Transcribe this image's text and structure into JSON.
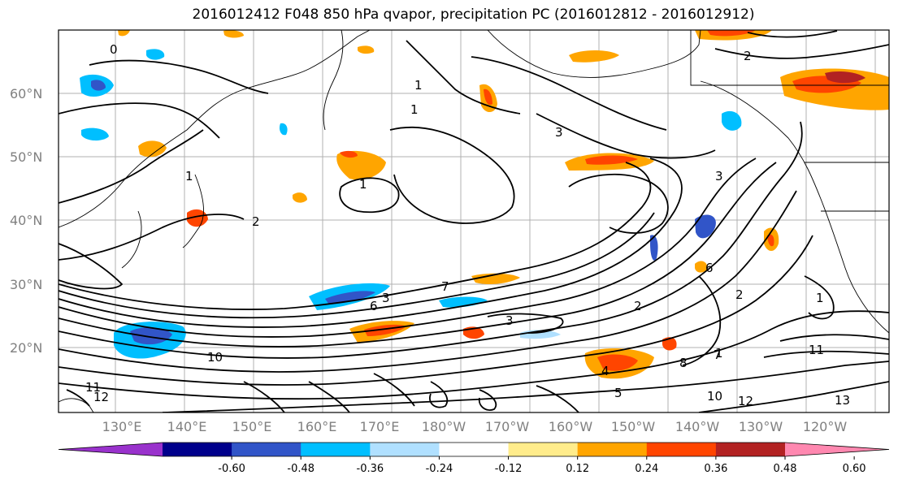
{
  "title": "2016012412 F048 850 hPa qvapor, precipitation PC (2016012812 - 2016012912)",
  "map": {
    "lat_labels": [
      "60°N",
      "50°N",
      "40°N",
      "30°N",
      "20°N"
    ],
    "lon_labels": [
      "130°E",
      "140°E",
      "150°E",
      "160°E",
      "170°E",
      "180°W",
      "170°W",
      "160°W",
      "150°W",
      "140°W",
      "130°W",
      "120°W"
    ],
    "contour_labels": [
      "1",
      "1",
      "1",
      "1",
      "2",
      "2",
      "3",
      "3",
      "3",
      "2",
      "2",
      "7",
      "7",
      "6",
      "10",
      "11",
      "12",
      "10",
      "12",
      "13",
      "11",
      "5",
      "8",
      "4",
      "6",
      "1",
      "0",
      "1",
      "3"
    ]
  },
  "colorbar": {
    "tick_labels": [
      "-0.60",
      "-0.48",
      "-0.36",
      "-0.24",
      "-0.12",
      "0.12",
      "0.24",
      "0.36",
      "0.48",
      "0.60"
    ],
    "colors": [
      "#9932cc",
      "#00008b",
      "#3155c8",
      "#00bfff",
      "#b0e0ff",
      "#ffffff",
      "#ffec8b",
      "#ffa500",
      "#ff4500",
      "#b22222",
      "#ff88b0"
    ]
  }
}
